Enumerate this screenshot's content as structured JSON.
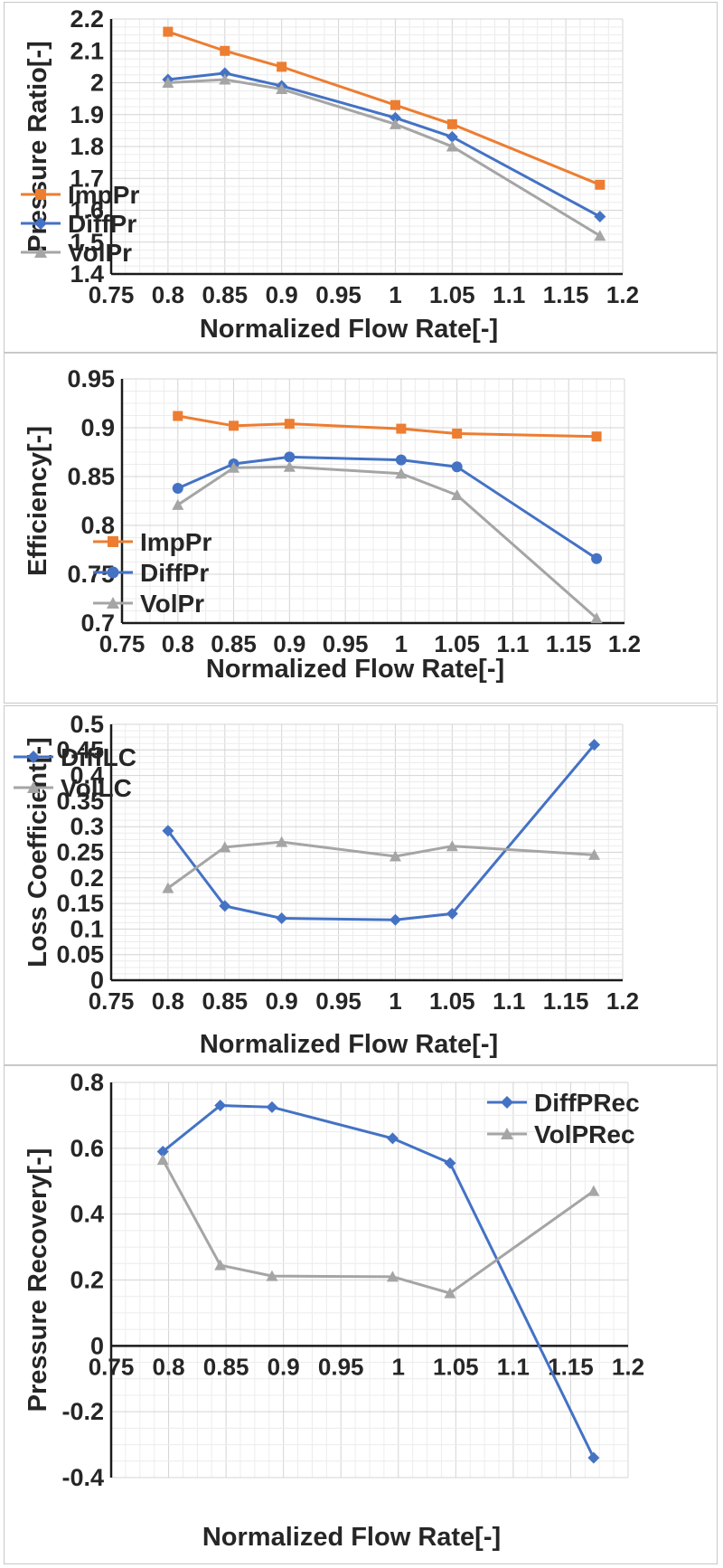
{
  "chart_data": [
    {
      "type": "line",
      "xlabel": "Normalized Flow Rate[-]",
      "ylabel": "Pressure Ratio[-]",
      "xlim": [
        0.75,
        1.2
      ],
      "ylim": [
        1.4,
        2.2
      ],
      "xticks": [
        "0.75",
        "0.8",
        "0.85",
        "0.9",
        "0.95",
        "1",
        "1.05",
        "1.1",
        "1.15",
        "1.2"
      ],
      "yticks": [
        "1.4",
        "1.5",
        "1.6",
        "1.7",
        "1.8",
        "1.9",
        "2",
        "2.1",
        "2.2"
      ],
      "grid": true,
      "legend_position": "bottom-left",
      "x": [
        0.8,
        0.85,
        0.9,
        1.0,
        1.05,
        1.18
      ],
      "series": [
        {
          "name": "ImpPr",
          "color": "#ed7d31",
          "marker": "square",
          "values": [
            2.16,
            2.1,
            2.05,
            1.93,
            1.87,
            1.68
          ]
        },
        {
          "name": "DiffPr",
          "color": "#4472c4",
          "marker": "diamond",
          "values": [
            2.01,
            2.03,
            1.99,
            1.89,
            1.83,
            1.58
          ]
        },
        {
          "name": "VolPr",
          "color": "#a5a5a5",
          "marker": "triangle",
          "values": [
            2.0,
            2.01,
            1.98,
            1.87,
            1.8,
            1.52
          ]
        }
      ]
    },
    {
      "type": "line",
      "xlabel": "Normalized Flow Rate[-]",
      "ylabel": "Efficiency[-]",
      "xlim": [
        0.75,
        1.2
      ],
      "ylim": [
        0.7,
        0.95
      ],
      "xticks": [
        "0.75",
        "0.8",
        "0.85",
        "0.9",
        "0.95",
        "1",
        "1.05",
        "1.1",
        "1.15",
        "1.2"
      ],
      "yticks": [
        "0.7",
        "0.75",
        "0.8",
        "0.85",
        "0.9",
        "0.95"
      ],
      "grid": true,
      "legend_position": "bottom-left",
      "x": [
        0.8,
        0.85,
        0.9,
        1.0,
        1.05,
        1.175
      ],
      "series": [
        {
          "name": "ImpPr",
          "color": "#ed7d31",
          "marker": "square",
          "values": [
            0.912,
            0.902,
            0.904,
            0.899,
            0.894,
            0.891
          ]
        },
        {
          "name": "DiffPr",
          "color": "#4472c4",
          "marker": "circle",
          "values": [
            0.838,
            0.863,
            0.87,
            0.867,
            0.86,
            0.766
          ]
        },
        {
          "name": "VolPr",
          "color": "#a5a5a5",
          "marker": "triangle",
          "values": [
            0.821,
            0.859,
            0.86,
            0.853,
            0.831,
            0.705
          ]
        }
      ]
    },
    {
      "type": "line",
      "xlabel": "Normalized Flow Rate[-]",
      "ylabel": "Loss Coefficient[-]",
      "xlim": [
        0.75,
        1.2
      ],
      "ylim": [
        0,
        0.5
      ],
      "xticks": [
        "0.75",
        "0.8",
        "0.85",
        "0.9",
        "0.95",
        "1",
        "1.05",
        "1.1",
        "1.15",
        "1.2"
      ],
      "yticks": [
        "0",
        "0.05",
        "0.1",
        "0.15",
        "0.2",
        "0.25",
        "0.3",
        "0.35",
        "0.4",
        "0.45",
        "0.5"
      ],
      "grid": true,
      "legend_position": "top-left",
      "x": [
        0.8,
        0.85,
        0.9,
        1.0,
        1.05,
        1.175
      ],
      "series": [
        {
          "name": "DiffLC",
          "color": "#4472c4",
          "marker": "diamond",
          "values": [
            0.292,
            0.145,
            0.121,
            0.118,
            0.13,
            0.46
          ]
        },
        {
          "name": "VolLC",
          "color": "#a5a5a5",
          "marker": "triangle",
          "values": [
            0.18,
            0.26,
            0.27,
            0.242,
            0.262,
            0.245
          ]
        }
      ]
    },
    {
      "type": "line",
      "xlabel": "Normalized Flow Rate[-]",
      "ylabel": "Pressure Recovery[-]",
      "xlim": [
        0.75,
        1.2
      ],
      "ylim": [
        -0.4,
        0.8
      ],
      "xticks": [
        "0.75",
        "0.8",
        "0.85",
        "0.9",
        "0.95",
        "1",
        "1.05",
        "1.1",
        "1.15",
        "1.2"
      ],
      "yticks": [
        "-0.4",
        "-0.2",
        "0",
        "0.2",
        "0.4",
        "0.6",
        "0.8"
      ],
      "grid": true,
      "legend_position": "top-right",
      "x": [
        0.795,
        0.845,
        0.89,
        0.995,
        1.045,
        1.17
      ],
      "series": [
        {
          "name": "DiffPRec",
          "color": "#4472c4",
          "marker": "diamond",
          "values": [
            0.59,
            0.73,
            0.725,
            0.63,
            0.555,
            -0.34
          ]
        },
        {
          "name": "VolPRec",
          "color": "#a5a5a5",
          "marker": "triangle",
          "values": [
            0.565,
            0.245,
            0.212,
            0.21,
            0.16,
            0.47
          ]
        }
      ]
    }
  ]
}
